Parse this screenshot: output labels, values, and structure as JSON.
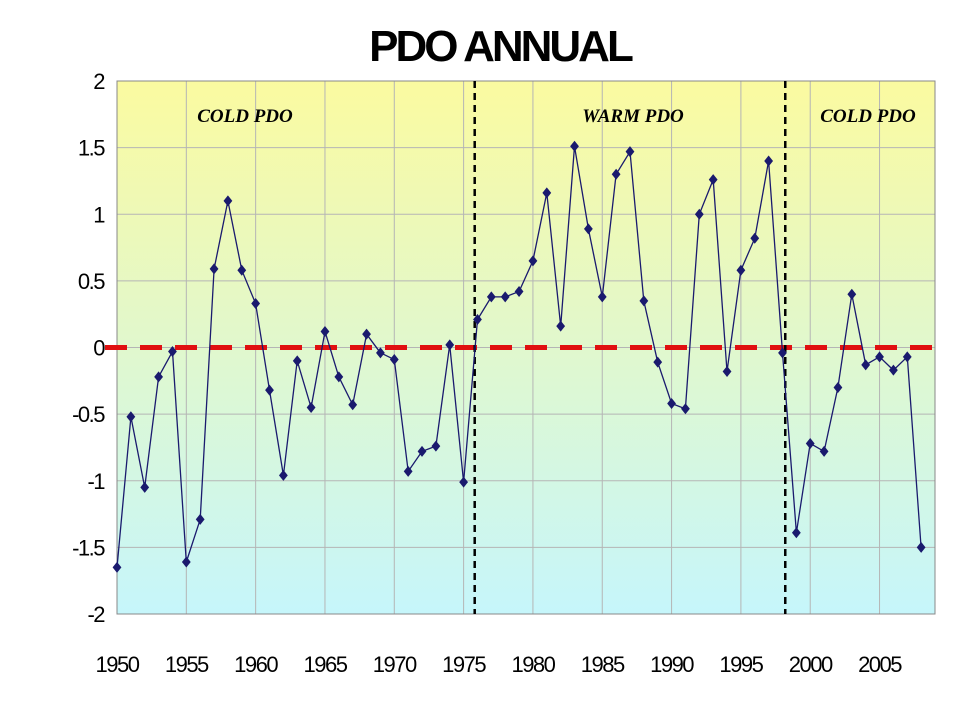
{
  "chart_data": {
    "type": "line",
    "title": "PDO ANNUAL",
    "xlabel": "",
    "ylabel": "",
    "xlim": [
      1950,
      2009
    ],
    "ylim": [
      -2,
      2
    ],
    "x_ticks": [
      "1950",
      "1955",
      "1960",
      "1965",
      "1970",
      "1975",
      "1980",
      "1985",
      "1990",
      "1995",
      "2000",
      "2005"
    ],
    "y_ticks": [
      "2",
      "1.5",
      "1",
      "0.5",
      "0",
      "-0.5",
      "-1",
      "-1.5",
      "-2"
    ],
    "grid": true,
    "series": [
      {
        "marker": "diamond",
        "color": "#1a1a6e",
        "x": [
          1950,
          1951,
          1952,
          1953,
          1954,
          1955,
          1956,
          1957,
          1958,
          1959,
          1960,
          1961,
          1962,
          1963,
          1964,
          1965,
          1966,
          1967,
          1968,
          1969,
          1970,
          1971,
          1972,
          1973,
          1974,
          1975,
          1976,
          1977,
          1978,
          1979,
          1980,
          1981,
          1982,
          1983,
          1984,
          1985,
          1986,
          1987,
          1988,
          1989,
          1990,
          1991,
          1992,
          1993,
          1994,
          1995,
          1996,
          1997,
          1998,
          1999,
          2000,
          2001,
          2002,
          2003,
          2004,
          2005,
          2006,
          2007,
          2008
        ],
        "values": [
          -1.65,
          -0.52,
          -1.05,
          -0.22,
          -0.03,
          -1.61,
          -1.29,
          0.59,
          1.1,
          0.58,
          0.33,
          -0.32,
          -0.96,
          -0.1,
          -0.45,
          0.12,
          -0.22,
          -0.43,
          0.1,
          -0.04,
          -0.09,
          -0.93,
          -0.78,
          -0.74,
          0.02,
          -1.01,
          0.21,
          0.38,
          0.38,
          0.42,
          0.65,
          1.16,
          0.16,
          1.51,
          0.89,
          0.38,
          1.3,
          1.47,
          0.35,
          -0.11,
          -0.42,
          -0.46,
          1.0,
          1.26,
          -0.18,
          0.58,
          0.82,
          1.4,
          -0.04,
          -1.39,
          -0.72,
          -0.78,
          -0.3,
          0.4,
          -0.13,
          -0.07,
          -0.17,
          -0.07,
          -1.5
        ]
      }
    ],
    "reference_lines": [
      {
        "orientation": "horizontal",
        "y": 0,
        "style": "dashed",
        "color": "#e01010"
      },
      {
        "orientation": "vertical",
        "x": 1975.8,
        "style": "dashed",
        "color": "#000000"
      },
      {
        "orientation": "vertical",
        "x": 1998.2,
        "style": "dashed",
        "color": "#000000"
      }
    ],
    "annotations": [
      "COLD PDO",
      "WARM PDO",
      "COLD PDO"
    ],
    "background": {
      "top": "#fbfaa0",
      "bottom": "#c6f6fb"
    },
    "plot_border": "#888888",
    "grid_color": "#b5b5b5"
  }
}
